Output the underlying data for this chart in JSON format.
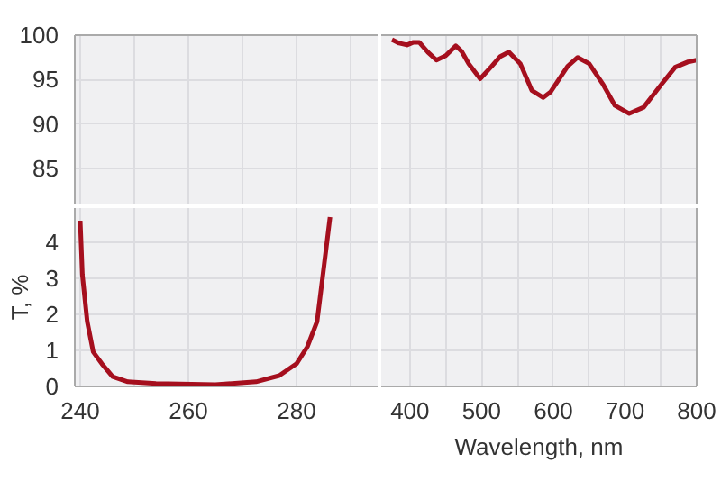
{
  "chart_data": [
    {
      "type": "line",
      "grid": true,
      "tick_labels": "y",
      "xlim": [
        239,
        295
      ],
      "xticks": [
        240,
        {
          "value": 250,
          "label": null
        },
        260,
        {
          "value": 270,
          "label": null
        },
        280,
        {
          "value": 290,
          "label": null
        }
      ],
      "ylim": [
        81,
        100
      ],
      "yticks": [
        85,
        90,
        95,
        100
      ]
    },
    {
      "type": "line",
      "color": "#a50f1e",
      "grid": true,
      "tick_labels": false,
      "x": [
        375,
        385,
        396,
        405,
        413,
        425,
        437,
        450,
        464,
        472,
        482,
        498,
        514,
        526,
        538,
        554,
        570,
        586,
        596,
        606,
        620,
        634,
        650,
        670,
        686,
        706,
        726,
        750,
        770,
        788,
        800
      ],
      "values": [
        99.5,
        99.1,
        98.9,
        99.2,
        99.2,
        98.1,
        97.2,
        97.7,
        98.8,
        98.2,
        96.8,
        95.1,
        96.5,
        97.6,
        98.1,
        96.8,
        93.8,
        93.0,
        93.6,
        94.8,
        96.5,
        97.5,
        96.8,
        94.4,
        92.1,
        91.2,
        91.9,
        94.4,
        96.4,
        97.0,
        97.2
      ],
      "xlim": [
        360,
        800
      ],
      "xticks": [
        400,
        {
          "value": 450,
          "label": null
        },
        500,
        {
          "value": 550,
          "label": null
        },
        600,
        {
          "value": 650,
          "label": null
        },
        700,
        {
          "value": 750,
          "label": null
        },
        800
      ],
      "ylim": [
        81,
        100
      ],
      "yticks": [
        85,
        90,
        95,
        100
      ]
    },
    {
      "type": "line",
      "ylabel": "T, %",
      "color": "#a50f1e",
      "grid": true,
      "x": [
        240,
        240.4,
        241.3,
        242.4,
        244,
        246,
        248.8,
        254,
        265,
        272.5,
        276.8,
        280,
        282,
        283.8,
        284.8,
        286.2
      ],
      "values": [
        4.6,
        3.1,
        1.8,
        0.96,
        0.63,
        0.27,
        0.13,
        0.08,
        0.05,
        0.13,
        0.3,
        0.63,
        1.1,
        1.8,
        3.0,
        4.7
      ],
      "xlim": [
        239,
        295
      ],
      "xticks": [
        240,
        {
          "value": 250,
          "label": null
        },
        260,
        {
          "value": 270,
          "label": null
        },
        280,
        {
          "value": 290,
          "label": null
        }
      ],
      "ylim": [
        0,
        4.95
      ],
      "yticks": [
        0,
        1,
        2,
        3,
        4
      ]
    },
    {
      "type": "line",
      "xlabel": "Wavelength, nm",
      "grid": true,
      "tick_labels": "x",
      "xlim": [
        360,
        800
      ],
      "xticks": [
        400,
        {
          "value": 450,
          "label": null
        },
        500,
        {
          "value": 550,
          "label": null
        },
        600,
        {
          "value": 650,
          "label": null
        },
        700,
        {
          "value": 750,
          "label": null
        },
        800
      ],
      "ylim": [
        0,
        4.95
      ],
      "yticks": [
        0,
        1,
        2,
        3,
        4
      ]
    }
  ]
}
